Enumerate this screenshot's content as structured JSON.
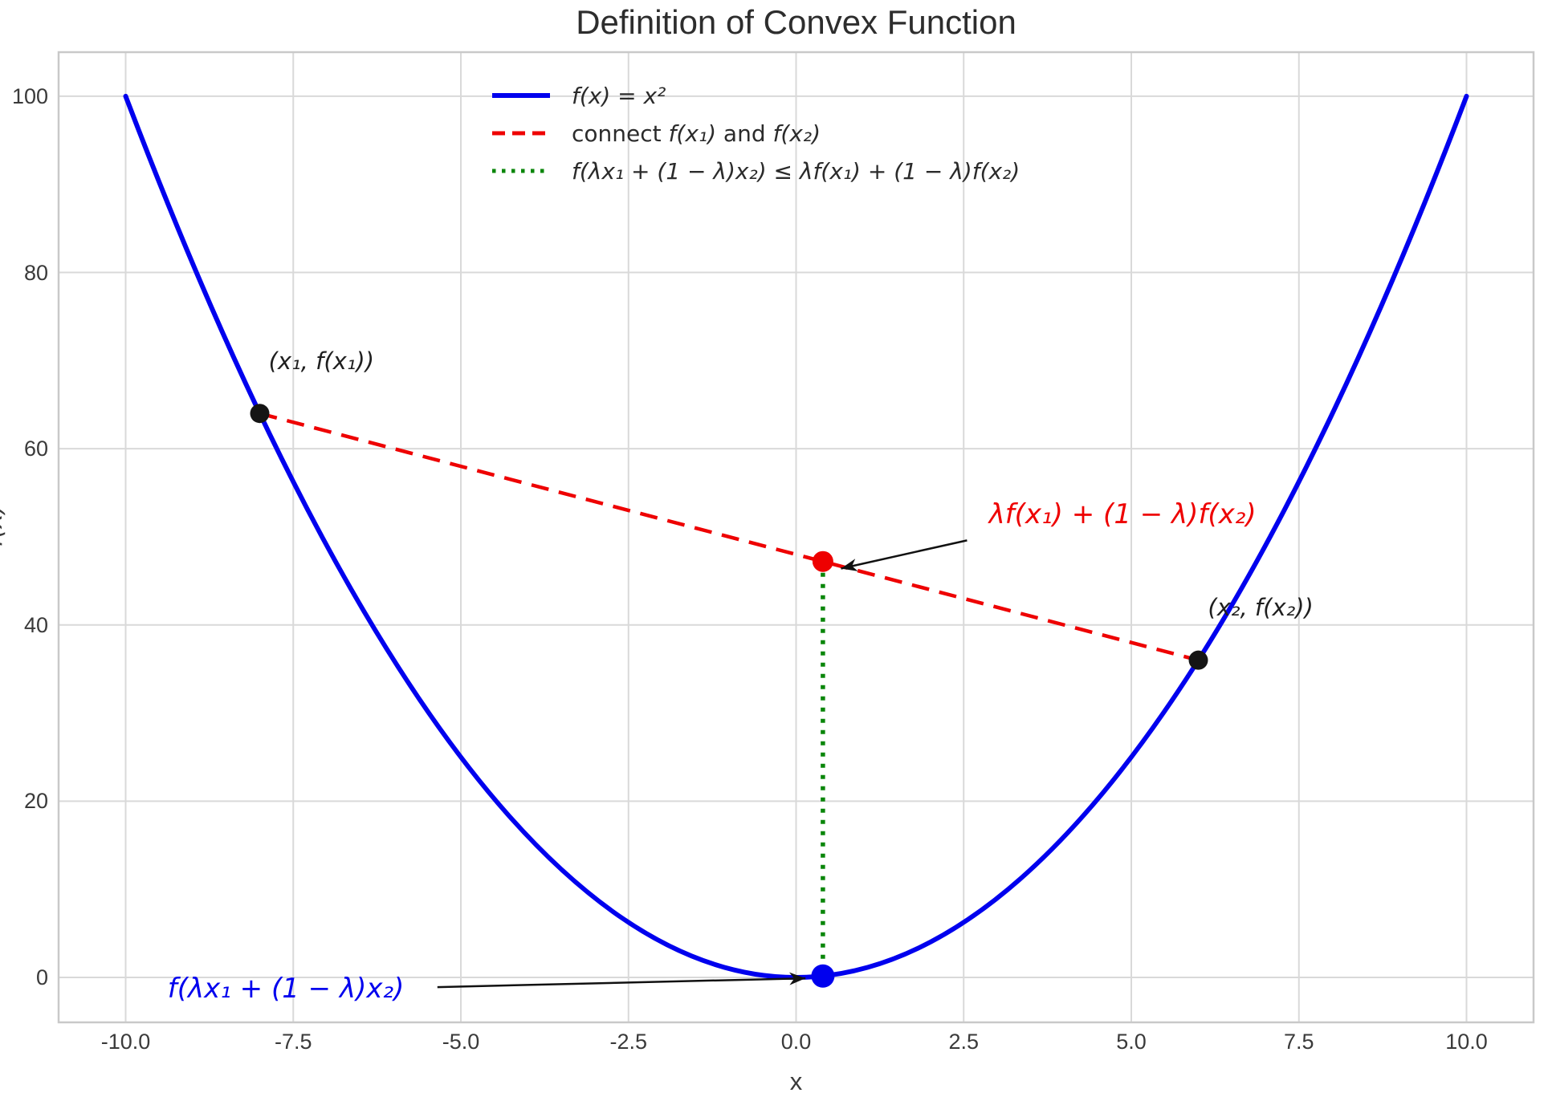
{
  "figure": {
    "title": "Definition of Convex Function"
  },
  "chart_data": {
    "type": "line",
    "title": "Definition of Convex Function",
    "xlabel": "x",
    "ylabel": "f(x)",
    "xlim": [
      -11,
      11
    ],
    "ylim": [
      -5.1,
      105
    ],
    "grid": true,
    "legend_location": "upper center",
    "x_ticks": [
      -10,
      -7.5,
      -5,
      -2.5,
      0,
      2.5,
      5,
      7.5,
      10
    ],
    "x_tick_labels": [
      "-10.0",
      "-7.5",
      "-5.0",
      "-2.5",
      "0.0",
      "2.5",
      "5.0",
      "7.5",
      "10.0"
    ],
    "y_ticks": [
      0,
      20,
      40,
      60,
      80,
      100
    ],
    "y_tick_labels": [
      "0",
      "20",
      "40",
      "60",
      "80",
      "100"
    ],
    "curve": {
      "label": "f(x) = x²",
      "expression": "f(x) = x^2",
      "x_range": [
        -10,
        10
      ],
      "bezier": {
        "p0": [
          -10,
          100
        ],
        "c": [
          0,
          -100
        ],
        "p2": [
          10,
          100
        ]
      }
    },
    "secant": {
      "label": "connect f(x₁) and f(x₂)",
      "from": [
        -8,
        64
      ],
      "to": [
        6,
        36
      ]
    },
    "inequality_segment": {
      "label": "f(λx₁ + (1 − λ)x₂) ≤ λf(x₁) + (1 − λ)f(x₂)",
      "x": 0.4,
      "y_from": 0.16,
      "y_to": 47.2
    },
    "points": [
      {
        "name": "point-x1",
        "x": -8,
        "y": 64,
        "color": "#151515",
        "r": 12
      },
      {
        "name": "point-x2",
        "x": 6,
        "y": 36,
        "color": "#151515",
        "r": 12
      },
      {
        "name": "point-chord-combination",
        "x": 0.4,
        "y": 47.2,
        "color": "#ee0000",
        "r": 13
      },
      {
        "name": "point-curve-value",
        "x": 0.4,
        "y": 0.16,
        "color": "#0000ee",
        "r": 14.5
      }
    ]
  },
  "colors": {
    "curve": "#0000ee",
    "secant": "#ee0000",
    "inequality": "#0a860a",
    "grid": "#d9d9d9",
    "spine": "#c9c9c9",
    "arrow": "#111111",
    "tick": "#3a3a3a",
    "title": "#2d2d2d",
    "label_black": "#1f1f1f"
  },
  "legend": {
    "items": [
      {
        "name": "legend-curve",
        "style": "solid",
        "color": "#0000ee",
        "parts": [
          {
            "t": "f(x) = x²",
            "math": true
          }
        ]
      },
      {
        "name": "legend-secant",
        "style": "dashed",
        "color": "#ee0000",
        "parts": [
          {
            "t": "connect ",
            "math": false
          },
          {
            "t": "f(x₁)",
            "math": true
          },
          {
            "t": " and ",
            "math": false
          },
          {
            "t": "f(x₂)",
            "math": true
          }
        ]
      },
      {
        "name": "legend-inequality",
        "style": "dotted",
        "color": "#0a860a",
        "parts": [
          {
            "t": "f(λx₁ + (1 − λ)x₂) ≤ λf(x₁) + (1 − λ)f(x₂)",
            "math": true
          }
        ]
      }
    ]
  },
  "annotations": [
    {
      "name": "label-point-x1",
      "text": "(x₁, f(x₁))",
      "color": "#1f1f1f",
      "size": 29,
      "at": [
        -7.08,
        69.9
      ]
    },
    {
      "name": "label-point-x2",
      "text": "(x₂, f(x₂))",
      "color": "#1f1f1f",
      "size": 29,
      "at": [
        6.93,
        42.0
      ]
    },
    {
      "name": "annotation-chord-value",
      "text": "λf(x₁) + (1 − λ)f(x₂)",
      "color": "#ee0000",
      "size": 34,
      "at": [
        4.87,
        52.5
      ],
      "arrow": {
        "from": [
          2.55,
          49.6
        ],
        "to": [
          0.67,
          46.4
        ]
      }
    },
    {
      "name": "annotation-curve-value",
      "text": "f(λx₁ + (1 − λ)x₂)",
      "color": "#0000ee",
      "size": 34,
      "at": [
        -7.61,
        -1.3
      ],
      "arrow": {
        "from": [
          -5.35,
          -1.1
        ],
        "to": [
          0.14,
          -0.1
        ]
      }
    }
  ]
}
